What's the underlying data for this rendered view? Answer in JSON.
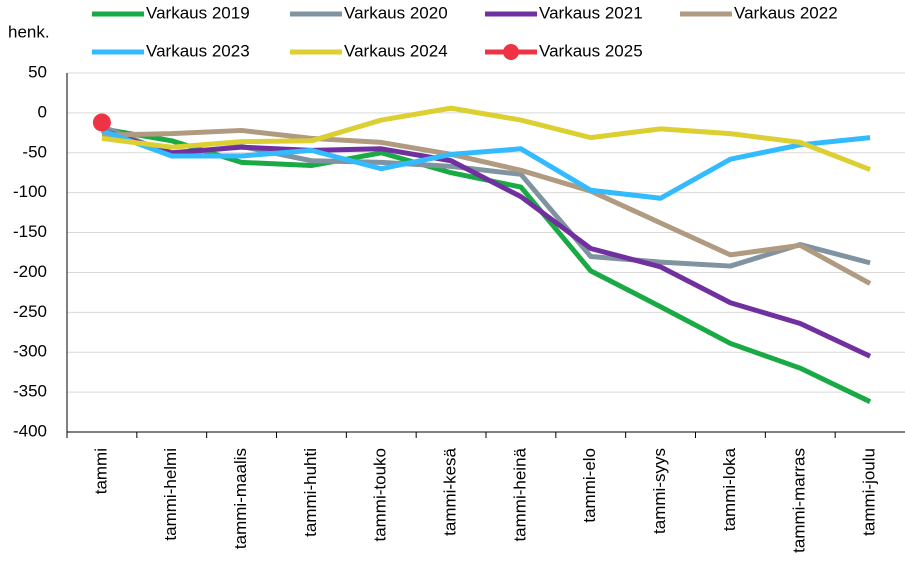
{
  "chart_data": {
    "type": "line",
    "y_label": "henk.",
    "categories": [
      "tammi",
      "tammi-helmi",
      "tammi-maalis",
      "tammi-huhti",
      "tammi-touko",
      "tammi-kesä",
      "tammi-heinä",
      "tammi-elo",
      "tammi-syys",
      "tammi-loka",
      "tammi-marras",
      "tammi-joulu"
    ],
    "series": [
      {
        "name": "Varkaus 2019",
        "color": "#1aaa45",
        "values": [
          -20,
          -35,
          -62,
          -66,
          -50,
          -75,
          -93,
          -198,
          -243,
          -289,
          -320,
          -362
        ]
      },
      {
        "name": "Varkaus 2020",
        "color": "#7f93a0",
        "values": [
          -17,
          -52,
          -42,
          -60,
          -62,
          -67,
          -77,
          -180,
          -187,
          -192,
          -165,
          -188
        ]
      },
      {
        "name": "Varkaus 2021",
        "color": "#7030a0",
        "values": [
          -22,
          -50,
          -43,
          -47,
          -45,
          -60,
          -105,
          -170,
          -193,
          -238,
          -264,
          -305
        ]
      },
      {
        "name": "Varkaus 2022",
        "color": "#b09a80",
        "values": [
          -28,
          -26,
          -22,
          -32,
          -37,
          -52,
          -72,
          -98,
          -138,
          -178,
          -166,
          -214
        ]
      },
      {
        "name": "Varkaus 2023",
        "color": "#33bbff",
        "values": [
          -22,
          -54,
          -54,
          -47,
          -70,
          -52,
          -45,
          -97,
          -107,
          -58,
          -40,
          -31
        ]
      },
      {
        "name": "Varkaus 2024",
        "color": "#dccf32",
        "values": [
          -32,
          -43,
          -36,
          -35,
          -9,
          6,
          -9,
          -31,
          -20,
          -26,
          -37,
          -71
        ]
      },
      {
        "name": "Varkaus 2025",
        "color": "#ee3344",
        "marker": true,
        "values": [
          -12,
          null,
          null,
          null,
          null,
          null,
          null,
          null,
          null,
          null,
          null,
          null
        ]
      }
    ],
    "ylim": [
      -400,
      50
    ],
    "yticks": [
      -400,
      -350,
      -300,
      -250,
      -200,
      -150,
      -100,
      -50,
      0,
      50
    ],
    "grid": true
  }
}
